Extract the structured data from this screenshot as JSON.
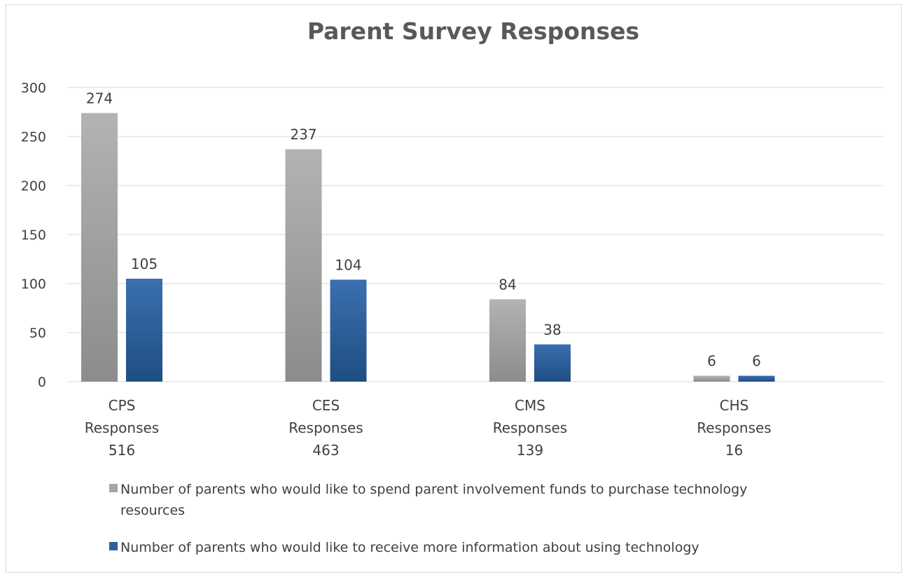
{
  "chart_data": {
    "type": "bar",
    "title": "Parent Survey Responses",
    "xlabel": "",
    "ylabel": "",
    "ylim": [
      0,
      300
    ],
    "yticks": [
      0,
      50,
      100,
      150,
      200,
      250,
      300
    ],
    "grid": true,
    "legend_position": "bottom",
    "categories": [
      [
        "CPS",
        "Responses",
        "516"
      ],
      [
        "CES",
        "Responses",
        "463"
      ],
      [
        "CMS",
        "Responses",
        "139"
      ],
      [
        "CHS",
        "Responses",
        "16"
      ]
    ],
    "series": [
      {
        "name": "Number of parents who would like to spend parent involvement funds to purchase technology resources",
        "legend_lines": [
          "Number of parents who would like to spend parent involvement funds to purchase technology",
          "resources"
        ],
        "color": "#a6a6a6",
        "values": [
          274,
          237,
          84,
          6
        ]
      },
      {
        "name": "Number of parents who would like to receive more information about using technology",
        "legend_lines": [
          "Number of parents who would like to receive more information about using technology"
        ],
        "color": "#2f5f98",
        "values": [
          105,
          104,
          38,
          6
        ]
      }
    ]
  }
}
